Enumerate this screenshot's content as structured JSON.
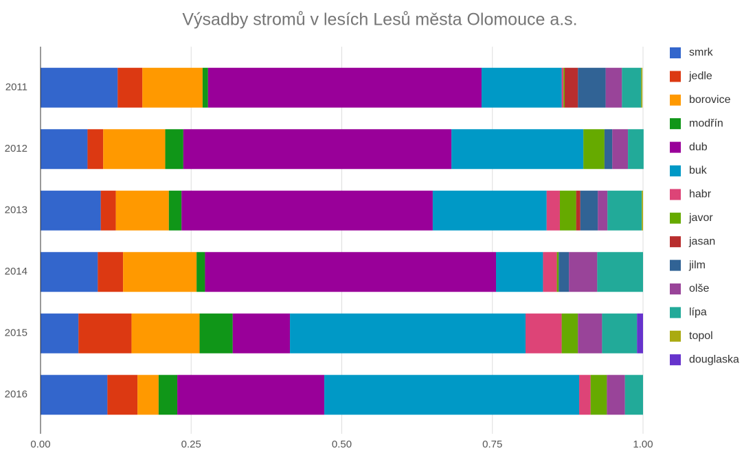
{
  "chart_data": {
    "type": "bar",
    "orientation": "horizontal",
    "stacked": true,
    "title": "Výsadby stromů v lesích Lesů města Olomouce a.s.",
    "categories": [
      "2011",
      "2012",
      "2013",
      "2014",
      "2015",
      "2016"
    ],
    "series": [
      {
        "name": "smrk",
        "color": "#3366cc",
        "values": [
          0.128,
          0.078,
          0.1,
          0.095,
          0.063,
          0.111
        ]
      },
      {
        "name": "jedle",
        "color": "#dc3912",
        "values": [
          0.041,
          0.026,
          0.025,
          0.042,
          0.088,
          0.05
        ]
      },
      {
        "name": "borovice",
        "color": "#ff9900",
        "values": [
          0.1,
          0.103,
          0.088,
          0.122,
          0.113,
          0.035
        ]
      },
      {
        "name": "modřín",
        "color": "#109618",
        "values": [
          0.009,
          0.03,
          0.021,
          0.014,
          0.055,
          0.031
        ]
      },
      {
        "name": "dub",
        "color": "#990099",
        "values": [
          0.454,
          0.445,
          0.417,
          0.483,
          0.095,
          0.244
        ]
      },
      {
        "name": "buk",
        "color": "#0099c6",
        "values": [
          0.133,
          0.219,
          0.189,
          0.078,
          0.391,
          0.423
        ]
      },
      {
        "name": "habr",
        "color": "#dd4477",
        "values": [
          0.003,
          0,
          0.022,
          0.023,
          0.06,
          0.019
        ]
      },
      {
        "name": "javor",
        "color": "#66aa00",
        "values": [
          0.002,
          0.035,
          0.027,
          0.003,
          0.027,
          0.027
        ]
      },
      {
        "name": "jasan",
        "color": "#b82e2e",
        "values": [
          0.022,
          0,
          0.007,
          0,
          0,
          0
        ]
      },
      {
        "name": "jilm",
        "color": "#316395",
        "values": [
          0.046,
          0.013,
          0.029,
          0.017,
          0,
          0
        ]
      },
      {
        "name": "olše",
        "color": "#994499",
        "values": [
          0.027,
          0.026,
          0.016,
          0.047,
          0.04,
          0.03
        ]
      },
      {
        "name": "lípa",
        "color": "#22aa99",
        "values": [
          0.032,
          0.026,
          0.057,
          0.076,
          0.058,
          0.03
        ]
      },
      {
        "name": "topol",
        "color": "#aaaa11",
        "values": [
          0.002,
          0,
          0.002,
          0,
          0,
          0
        ]
      },
      {
        "name": "douglaska",
        "color": "#6633cc",
        "values": [
          0,
          0,
          0,
          0,
          0.01,
          0
        ]
      }
    ],
    "xlim": [
      0,
      1
    ],
    "xticks": [
      {
        "value": 0,
        "label": "0.00"
      },
      {
        "value": 0.25,
        "label": "0.25"
      },
      {
        "value": 0.5,
        "label": "0.50"
      },
      {
        "value": 0.75,
        "label": "0.75"
      },
      {
        "value": 1,
        "label": "1.00"
      }
    ],
    "grid": true,
    "legend": "right"
  }
}
